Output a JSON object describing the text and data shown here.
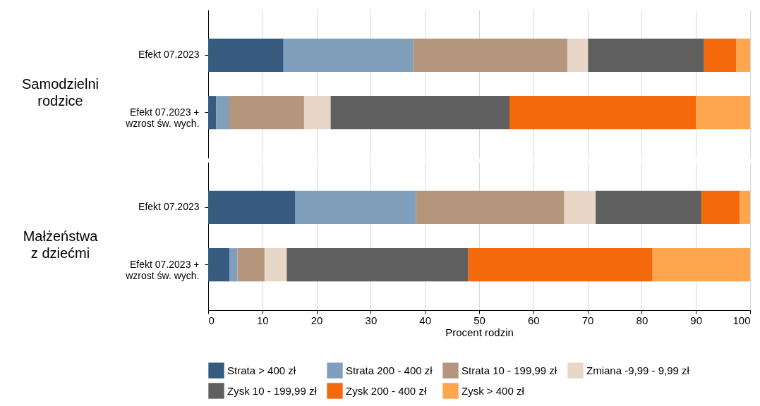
{
  "chart_data": [
    {
      "type": "bar",
      "orientation": "horizontal",
      "stacked": true,
      "ylabel": "Samodzielni\nrodzice",
      "categories": [
        "Efekt 07.2023",
        "Efekt 07.2023 +\nwzrost św. wych."
      ],
      "xlim": [
        0,
        100
      ],
      "xticks": [
        0,
        10,
        20,
        30,
        40,
        50,
        60,
        70,
        80,
        90,
        100
      ],
      "grid": "x",
      "tick_labels": "y",
      "legend": "bottom",
      "series": [
        {
          "name": "Strata > 400 zł",
          "color": "#375a7f",
          "values": [
            13.9,
            1.5
          ]
        },
        {
          "name": "Strata 200 - 400 zł",
          "color": "#7f9fbd",
          "values": [
            23.9,
            2.4
          ]
        },
        {
          "name": "Strata 10 - 199,99 zł",
          "color": "#b4967c",
          "values": [
            28.5,
            13.8
          ]
        },
        {
          "name": "Zmiana -9,99 - 9,99 zł",
          "color": "#e8d6c6",
          "values": [
            3.8,
            4.9
          ]
        },
        {
          "name": "Zysk 10 - 199,99 zł",
          "color": "#5f5f5f",
          "values": [
            21.4,
            33.0
          ]
        },
        {
          "name": "Zysk 200 - 400 zł",
          "color": "#f4690b",
          "values": [
            5.9,
            34.4
          ]
        },
        {
          "name": "Zysk > 400 zł",
          "color": "#fea54f",
          "values": [
            2.6,
            10.0
          ]
        }
      ]
    },
    {
      "type": "bar",
      "orientation": "horizontal",
      "stacked": true,
      "ylabel": "Małżeństwa\nz dziećmi",
      "xlabel": "Procent rodzin",
      "categories": [
        "Efekt 07.2023",
        "Efekt 07.2023 +\nwzrost św. wych."
      ],
      "xlim": [
        0,
        100
      ],
      "xticks": [
        0,
        10,
        20,
        30,
        40,
        50,
        60,
        70,
        80,
        90,
        100
      ],
      "grid": "x",
      "legend": "bottom",
      "series": [
        {
          "name": "Strata > 400 zł",
          "color": "#375a7f",
          "values": [
            16.1,
            3.9
          ]
        },
        {
          "name": "Strata 200 - 400 zł",
          "color": "#7f9fbd",
          "values": [
            22.2,
            1.5
          ]
        },
        {
          "name": "Strata 10 - 199,99 zł",
          "color": "#b4967c",
          "values": [
            27.4,
            5.0
          ]
        },
        {
          "name": "Zmiana -9,99 - 9,99 zł",
          "color": "#e8d6c6",
          "values": [
            5.8,
            4.1
          ]
        },
        {
          "name": "Zysk 10 - 199,99 zł",
          "color": "#5f5f5f",
          "values": [
            19.5,
            33.5
          ]
        },
        {
          "name": "Zysk 200 - 400 zł",
          "color": "#f4690b",
          "values": [
            7.1,
            34.0
          ]
        },
        {
          "name": "Zysk > 400 zł",
          "color": "#fea54f",
          "values": [
            1.9,
            18.0
          ]
        }
      ]
    }
  ]
}
